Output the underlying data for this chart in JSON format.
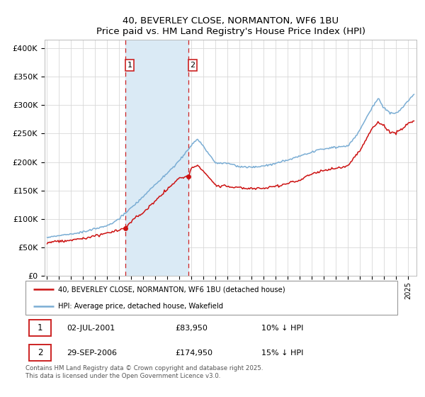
{
  "title": "40, BEVERLEY CLOSE, NORMANTON, WF6 1BU",
  "subtitle": "Price paid vs. HM Land Registry's House Price Index (HPI)",
  "ylabel_ticks": [
    "£0",
    "£50K",
    "£100K",
    "£150K",
    "£200K",
    "£250K",
    "£300K",
    "£350K",
    "£400K"
  ],
  "ytick_vals": [
    0,
    50000,
    100000,
    150000,
    200000,
    250000,
    300000,
    350000,
    400000
  ],
  "ylim": [
    0,
    415000
  ],
  "xlim_start": 1994.8,
  "xlim_end": 2025.7,
  "transaction1": {
    "date_num": 2001.5,
    "price": 83950,
    "label": "1",
    "date_str": "02-JUL-2001",
    "hpi_diff": "10% ↓ HPI"
  },
  "transaction2": {
    "date_num": 2006.75,
    "price": 174950,
    "label": "2",
    "date_str": "29-SEP-2006",
    "hpi_diff": "15% ↓ HPI"
  },
  "shade_color": "#daeaf5",
  "dashed_line_color": "#cc2222",
  "red_line_color": "#cc1111",
  "blue_line_color": "#7aadd4",
  "legend1_label": "40, BEVERLEY CLOSE, NORMANTON, WF6 1BU (detached house)",
  "legend2_label": "HPI: Average price, detached house, Wakefield",
  "footnote": "Contains HM Land Registry data © Crown copyright and database right 2025.\nThis data is licensed under the Open Government Licence v3.0.",
  "table_rows": [
    {
      "num": "1",
      "date": "02-JUL-2001",
      "price": "£83,950",
      "hpi": "10% ↓ HPI"
    },
    {
      "num": "2",
      "date": "29-SEP-2006",
      "price": "£174,950",
      "hpi": "15% ↓ HPI"
    }
  ]
}
